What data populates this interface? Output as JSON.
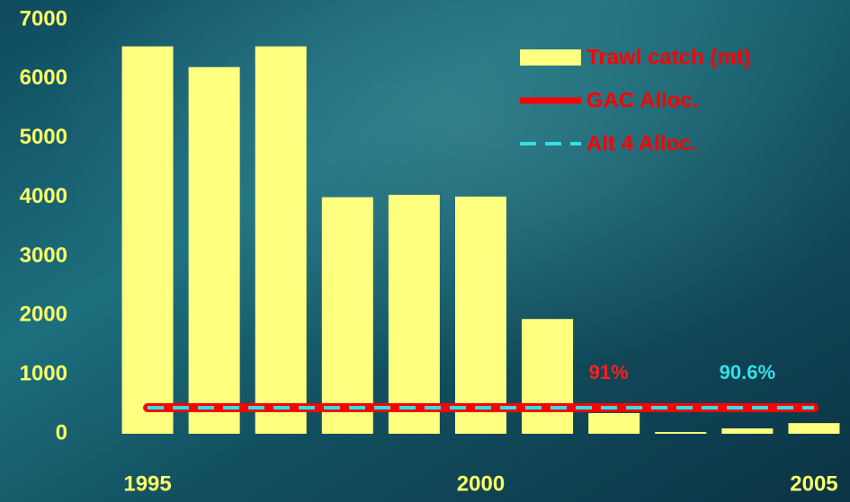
{
  "chart_data": {
    "type": "bar",
    "categories": [
      "1995",
      null,
      null,
      null,
      null,
      "2000",
      null,
      null,
      null,
      null,
      "2005"
    ],
    "series": [
      {
        "name": "Trawl catch (mt)",
        "type": "bar",
        "color": "#ffff80",
        "values": [
          6550,
          6200,
          6550,
          4000,
          4040,
          4010,
          1940,
          350,
          30,
          90,
          180
        ]
      },
      {
        "name": "GAC Alloc.",
        "type": "line",
        "color": "#ff0000",
        "values": [
          440,
          440,
          440,
          440,
          440,
          440,
          440,
          440,
          440,
          440,
          440
        ]
      },
      {
        "name": "Alt 4 Alloc.",
        "type": "line",
        "color": "#33e0e8",
        "dashed": true,
        "values": [
          440,
          440,
          440,
          440,
          440,
          440,
          440,
          440,
          440,
          440,
          440
        ]
      }
    ],
    "annotations": [
      {
        "text": "91%",
        "color": "#ff2020",
        "category": 7
      },
      {
        "text": "90.6%",
        "color": "#33e0e8",
        "category": 9
      }
    ],
    "ylim": [
      0,
      7000
    ],
    "yticks": [
      0,
      1000,
      2000,
      3000,
      4000,
      5000,
      6000,
      7000
    ],
    "axis_color": "#ffff66",
    "legend_text_color": "#ff0000",
    "legend": "upper right",
    "grid": false
  }
}
